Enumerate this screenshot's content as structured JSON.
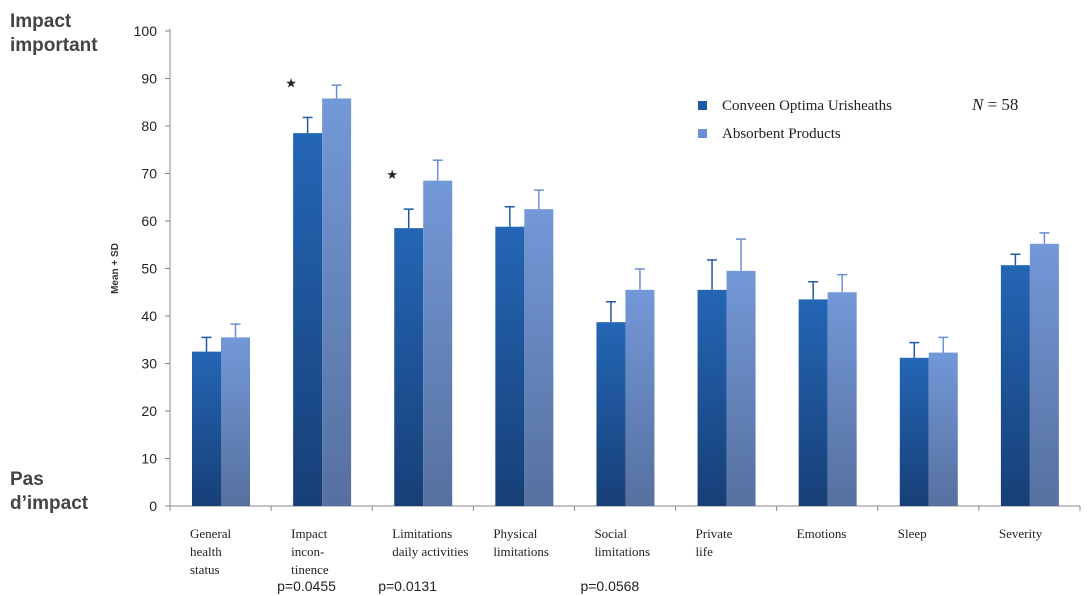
{
  "labels": {
    "top": "Impact important",
    "bottom": "Pas d’impact"
  },
  "note": {
    "n_symbol": "N",
    "n_rest": " = 58"
  },
  "chart_data": {
    "type": "bar",
    "ylabel": "Mean + SD",
    "ylim": [
      0,
      100
    ],
    "yticks": [
      0,
      10,
      20,
      30,
      40,
      50,
      60,
      70,
      80,
      90,
      100
    ],
    "legend_position": "top-right",
    "categories": [
      [
        "General",
        "health",
        "status"
      ],
      [
        "Impact",
        "incon-",
        "tinence"
      ],
      [
        "Limitations",
        "daily activities"
      ],
      [
        "Physical",
        "limitations"
      ],
      [
        "Social",
        "limitations"
      ],
      [
        "Private",
        "life"
      ],
      [
        "Emotions"
      ],
      [
        "Sleep"
      ],
      [
        "Severity"
      ]
    ],
    "series": [
      {
        "name": "Conveen Optima Urisheaths",
        "color": "#1f5aa6",
        "values": [
          32.5,
          78.5,
          58.5,
          58.8,
          38.7,
          45.5,
          43.5,
          31.2,
          50.7
        ],
        "errors": [
          3,
          3.3,
          4,
          4.2,
          4.3,
          6.3,
          3.7,
          3.2,
          2.3
        ]
      },
      {
        "name": "Absorbent Products",
        "color": "#6b8fd4",
        "values": [
          35.5,
          85.8,
          68.5,
          62.5,
          45.5,
          49.5,
          45,
          32.3,
          55.2
        ],
        "errors": [
          2.8,
          2.8,
          4.3,
          4,
          4.4,
          6.7,
          3.7,
          3.2,
          2.3
        ]
      }
    ],
    "significance": [
      {
        "category_index": 1,
        "marker": "★",
        "p": "p=0.0455"
      },
      {
        "category_index": 2,
        "marker": "★",
        "p": "p=0.0131"
      },
      {
        "category_index": 4,
        "marker": "",
        "p": "p=0.0568"
      }
    ]
  }
}
